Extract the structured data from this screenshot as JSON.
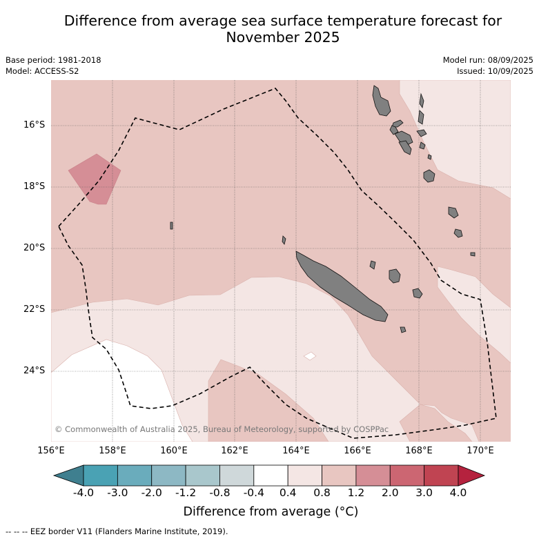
{
  "title": "Difference from average sea surface temperature forecast for November 2025",
  "meta": {
    "base_period": "Base period: 1981-2018",
    "model": "Model: ACCESS-S2",
    "model_run": "Model run: 08/09/2025",
    "issued": "Issued: 10/09/2025"
  },
  "axes": {
    "lat_labels": [
      "16°S",
      "18°S",
      "20°S",
      "22°S",
      "24°S"
    ],
    "lon_labels": [
      "156°E",
      "158°E",
      "160°E",
      "162°E",
      "164°E",
      "166°E",
      "168°E",
      "170°E"
    ]
  },
  "colorbar": {
    "label": "Difference from average (°C)",
    "ticks": [
      "-4.0",
      "-3.0",
      "-2.0",
      "-1.2",
      "-0.8",
      "-0.4",
      "0.4",
      "0.8",
      "1.2",
      "2.0",
      "3.0",
      "4.0"
    ],
    "colors": [
      "#3f7f8f",
      "#4aa2b4",
      "#6aacbc",
      "#8db8c4",
      "#a9c7cc",
      "#cfd8da",
      "#ffffff",
      "#f4e6e4",
      "#e8c6c1",
      "#d58e96",
      "#cc6672",
      "#c04452",
      "#b5223e"
    ]
  },
  "copyright": "© Commonwealth of Australia 2025, Bureau of Meteorology, supported by COSPPac",
  "footer": "--  --  -- EEZ border V11 (Flanders Marine Institute, 2019).",
  "map_colors": {
    "band_08_12": "#e8c6c1",
    "band_04_08": "#f4e6e4",
    "band_12_20": "#d58e96",
    "land": "#808080"
  }
}
